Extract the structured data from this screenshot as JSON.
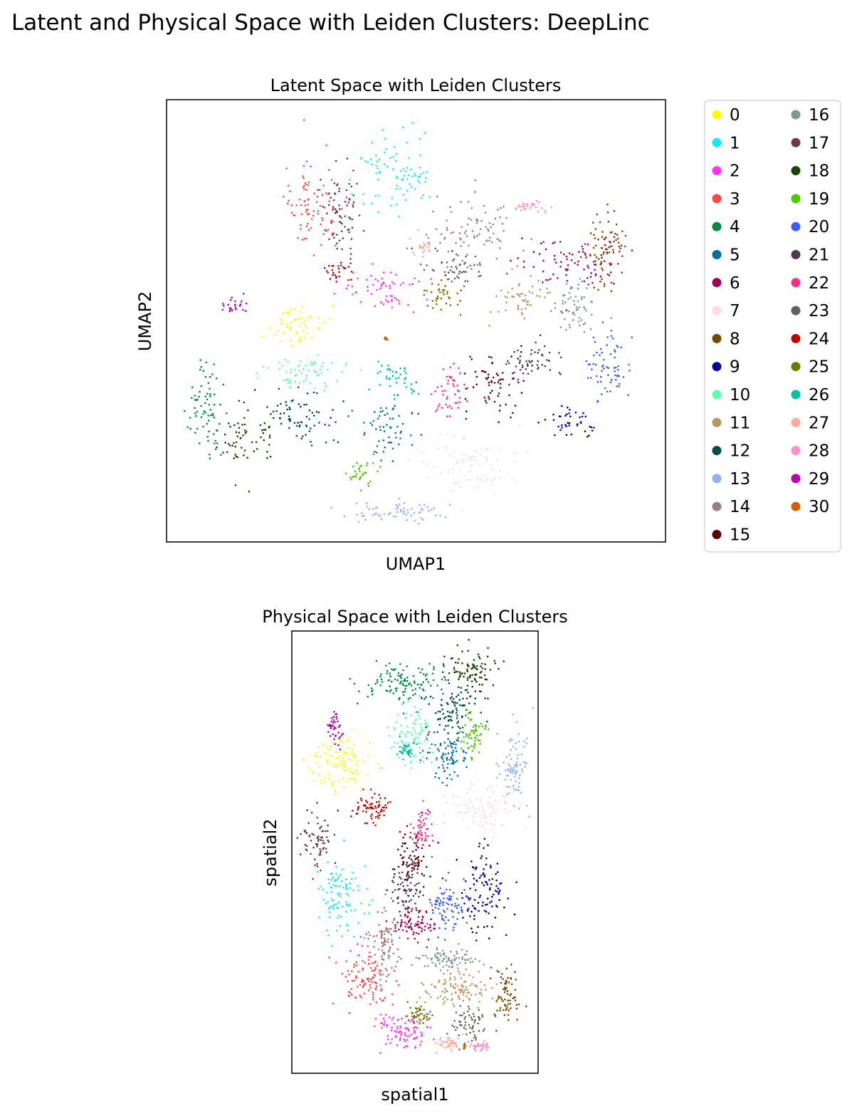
{
  "figure": {
    "title": "Latent and Physical Space with Leiden Clusters: DeepLinc"
  },
  "legend": {
    "placement": "right of top panel",
    "columns": 2,
    "items": [
      {
        "label": "0",
        "color": "#ffff00"
      },
      {
        "label": "1",
        "color": "#1ce6ff"
      },
      {
        "label": "2",
        "color": "#ff34ff"
      },
      {
        "label": "3",
        "color": "#ff4a46"
      },
      {
        "label": "4",
        "color": "#008941"
      },
      {
        "label": "5",
        "color": "#006fa6"
      },
      {
        "label": "6",
        "color": "#a30059"
      },
      {
        "label": "7",
        "color": "#ffdbe5"
      },
      {
        "label": "8",
        "color": "#7a4900"
      },
      {
        "label": "9",
        "color": "#0000a6"
      },
      {
        "label": "10",
        "color": "#63ffac"
      },
      {
        "label": "11",
        "color": "#b79762"
      },
      {
        "label": "12",
        "color": "#004d43"
      },
      {
        "label": "13",
        "color": "#8fb0ff"
      },
      {
        "label": "14",
        "color": "#997d87"
      },
      {
        "label": "15",
        "color": "#5a0007"
      },
      {
        "label": "16",
        "color": "#809693"
      },
      {
        "label": "17",
        "color": "#6a3a4c"
      },
      {
        "label": "18",
        "color": "#1b4400"
      },
      {
        "label": "19",
        "color": "#4fc601"
      },
      {
        "label": "20",
        "color": "#3b5dff"
      },
      {
        "label": "21",
        "color": "#4a3b53"
      },
      {
        "label": "22",
        "color": "#ff2f80"
      },
      {
        "label": "23",
        "color": "#61615a"
      },
      {
        "label": "24",
        "color": "#ba0900"
      },
      {
        "label": "25",
        "color": "#6b7900"
      },
      {
        "label": "26",
        "color": "#00c2a0"
      },
      {
        "label": "27",
        "color": "#ffaa92"
      },
      {
        "label": "28",
        "color": "#ff90c9"
      },
      {
        "label": "29",
        "color": "#b903aa"
      },
      {
        "label": "30",
        "color": "#d16100"
      }
    ]
  },
  "chart_data": [
    {
      "type": "scatter",
      "title": "Latent Space with Leiden Clusters",
      "xlabel": "UMAP1",
      "ylabel": "UMAP2",
      "ticks": "none",
      "grid": false,
      "clusters": [
        {
          "id": "0",
          "center": [
            0.26,
            0.51
          ],
          "spread": [
            0.045,
            0.05
          ]
        },
        {
          "id": "1",
          "center": [
            0.46,
            0.17
          ],
          "spread": [
            0.07,
            0.07
          ]
        },
        {
          "id": "2",
          "center": [
            0.43,
            0.43
          ],
          "spread": [
            0.06,
            0.04
          ]
        },
        {
          "id": "3",
          "center": [
            0.29,
            0.24
          ],
          "spread": [
            0.05,
            0.09
          ]
        },
        {
          "id": "4",
          "center": [
            0.08,
            0.7
          ],
          "spread": [
            0.03,
            0.09
          ]
        },
        {
          "id": "5",
          "center": [
            0.45,
            0.74
          ],
          "spread": [
            0.05,
            0.05
          ]
        },
        {
          "id": "6",
          "center": [
            0.82,
            0.37
          ],
          "spread": [
            0.09,
            0.05
          ]
        },
        {
          "id": "7",
          "center": [
            0.61,
            0.82
          ],
          "spread": [
            0.09,
            0.06
          ]
        },
        {
          "id": "8",
          "center": [
            0.88,
            0.34
          ],
          "spread": [
            0.04,
            0.08
          ]
        },
        {
          "id": "9",
          "center": [
            0.81,
            0.73
          ],
          "spread": [
            0.04,
            0.03
          ]
        },
        {
          "id": "10",
          "center": [
            0.27,
            0.62
          ],
          "spread": [
            0.08,
            0.03
          ]
        },
        {
          "id": "11",
          "center": [
            0.71,
            0.45
          ],
          "spread": [
            0.05,
            0.04
          ]
        },
        {
          "id": "12",
          "center": [
            0.28,
            0.72
          ],
          "spread": [
            0.06,
            0.05
          ]
        },
        {
          "id": "13",
          "center": [
            0.46,
            0.93
          ],
          "spread": [
            0.09,
            0.02
          ]
        },
        {
          "id": "14",
          "center": [
            0.61,
            0.3
          ],
          "spread": [
            0.08,
            0.07
          ]
        },
        {
          "id": "15",
          "center": [
            0.66,
            0.65
          ],
          "spread": [
            0.05,
            0.06
          ]
        },
        {
          "id": "16",
          "center": [
            0.82,
            0.47
          ],
          "spread": [
            0.04,
            0.06
          ]
        },
        {
          "id": "17",
          "center": [
            0.35,
            0.26
          ],
          "spread": [
            0.03,
            0.1
          ]
        },
        {
          "id": "18",
          "center": [
            0.17,
            0.76
          ],
          "spread": [
            0.05,
            0.06
          ]
        },
        {
          "id": "19",
          "center": [
            0.39,
            0.84
          ],
          "spread": [
            0.025,
            0.03
          ]
        },
        {
          "id": "20",
          "center": [
            0.88,
            0.6
          ],
          "spread": [
            0.04,
            0.07
          ]
        },
        {
          "id": "21",
          "center": [
            0.73,
            0.59
          ],
          "spread": [
            0.05,
            0.04
          ]
        },
        {
          "id": "22",
          "center": [
            0.57,
            0.66
          ],
          "spread": [
            0.03,
            0.05
          ]
        },
        {
          "id": "23",
          "center": [
            0.57,
            0.38
          ],
          "spread": [
            0.06,
            0.03
          ]
        },
        {
          "id": "24",
          "center": [
            0.34,
            0.39
          ],
          "spread": [
            0.02,
            0.02
          ]
        },
        {
          "id": "25",
          "center": [
            0.55,
            0.44
          ],
          "spread": [
            0.03,
            0.03
          ]
        },
        {
          "id": "26",
          "center": [
            0.46,
            0.63
          ],
          "spread": [
            0.04,
            0.03
          ]
        },
        {
          "id": "27",
          "center": [
            0.51,
            0.33
          ],
          "spread": [
            0.02,
            0.02
          ]
        },
        {
          "id": "28",
          "center": [
            0.73,
            0.24
          ],
          "spread": [
            0.04,
            0.01
          ]
        },
        {
          "id": "29",
          "center": [
            0.14,
            0.46
          ],
          "spread": [
            0.02,
            0.02
          ]
        },
        {
          "id": "30",
          "center": [
            0.44,
            0.54
          ],
          "spread": [
            0.005,
            0.005
          ]
        }
      ]
    },
    {
      "type": "scatter",
      "title": "Physical Space with Leiden Clusters",
      "xlabel": "spatial1",
      "ylabel": "spatial2",
      "ticks": "none",
      "grid": false,
      "clusters": [
        {
          "id": "0",
          "center": [
            0.2,
            0.3
          ],
          "spread": [
            0.1,
            0.05
          ]
        },
        {
          "id": "1",
          "center": [
            0.2,
            0.6
          ],
          "spread": [
            0.08,
            0.07
          ]
        },
        {
          "id": "2",
          "center": [
            0.45,
            0.9
          ],
          "spread": [
            0.1,
            0.035
          ]
        },
        {
          "id": "3",
          "center": [
            0.3,
            0.78
          ],
          "spread": [
            0.1,
            0.07
          ]
        },
        {
          "id": "4",
          "center": [
            0.45,
            0.12
          ],
          "spread": [
            0.13,
            0.04
          ]
        },
        {
          "id": "5",
          "center": [
            0.63,
            0.28
          ],
          "spread": [
            0.07,
            0.05
          ]
        },
        {
          "id": "6",
          "center": [
            0.49,
            0.66
          ],
          "spread": [
            0.08,
            0.04
          ]
        },
        {
          "id": "7",
          "center": [
            0.78,
            0.4
          ],
          "spread": [
            0.12,
            0.04
          ]
        },
        {
          "id": "8",
          "center": [
            0.87,
            0.82
          ],
          "spread": [
            0.05,
            0.05
          ]
        },
        {
          "id": "9",
          "center": [
            0.77,
            0.58
          ],
          "spread": [
            0.08,
            0.08
          ]
        },
        {
          "id": "10",
          "center": [
            0.48,
            0.23
          ],
          "spread": [
            0.08,
            0.06
          ]
        },
        {
          "id": "11",
          "center": [
            0.67,
            0.81
          ],
          "spread": [
            0.12,
            0.03
          ]
        },
        {
          "id": "12",
          "center": [
            0.65,
            0.18
          ],
          "spread": [
            0.08,
            0.05
          ]
        },
        {
          "id": "13",
          "center": [
            0.9,
            0.3
          ],
          "spread": [
            0.05,
            0.07
          ]
        },
        {
          "id": "14",
          "center": [
            0.38,
            0.7
          ],
          "spread": [
            0.05,
            0.06
          ]
        },
        {
          "id": "15",
          "center": [
            0.49,
            0.52
          ],
          "spread": [
            0.06,
            0.05
          ]
        },
        {
          "id": "16",
          "center": [
            0.63,
            0.74
          ],
          "spread": [
            0.1,
            0.02
          ]
        },
        {
          "id": "17",
          "center": [
            0.1,
            0.47
          ],
          "spread": [
            0.05,
            0.05
          ]
        },
        {
          "id": "18",
          "center": [
            0.73,
            0.09
          ],
          "spread": [
            0.08,
            0.05
          ]
        },
        {
          "id": "19",
          "center": [
            0.74,
            0.24
          ],
          "spread": [
            0.04,
            0.05
          ]
        },
        {
          "id": "20",
          "center": [
            0.63,
            0.63
          ],
          "spread": [
            0.06,
            0.05
          ]
        },
        {
          "id": "21",
          "center": [
            0.47,
            0.58
          ],
          "spread": [
            0.06,
            0.05
          ]
        },
        {
          "id": "22",
          "center": [
            0.53,
            0.45
          ],
          "spread": [
            0.04,
            0.04
          ]
        },
        {
          "id": "23",
          "center": [
            0.72,
            0.89
          ],
          "spread": [
            0.06,
            0.03
          ]
        },
        {
          "id": "24",
          "center": [
            0.32,
            0.4
          ],
          "spread": [
            0.07,
            0.03
          ]
        },
        {
          "id": "25",
          "center": [
            0.52,
            0.87
          ],
          "spread": [
            0.04,
            0.02
          ]
        },
        {
          "id": "26",
          "center": [
            0.47,
            0.27
          ],
          "spread": [
            0.03,
            0.02
          ]
        },
        {
          "id": "27",
          "center": [
            0.64,
            0.93
          ],
          "spread": [
            0.04,
            0.015
          ]
        },
        {
          "id": "28",
          "center": [
            0.77,
            0.94
          ],
          "spread": [
            0.04,
            0.01
          ]
        },
        {
          "id": "29",
          "center": [
            0.17,
            0.22
          ],
          "spread": [
            0.03,
            0.03
          ]
        },
        {
          "id": "30",
          "center": [
            0.7,
            0.94
          ],
          "spread": [
            0.005,
            0.005
          ]
        }
      ]
    }
  ]
}
